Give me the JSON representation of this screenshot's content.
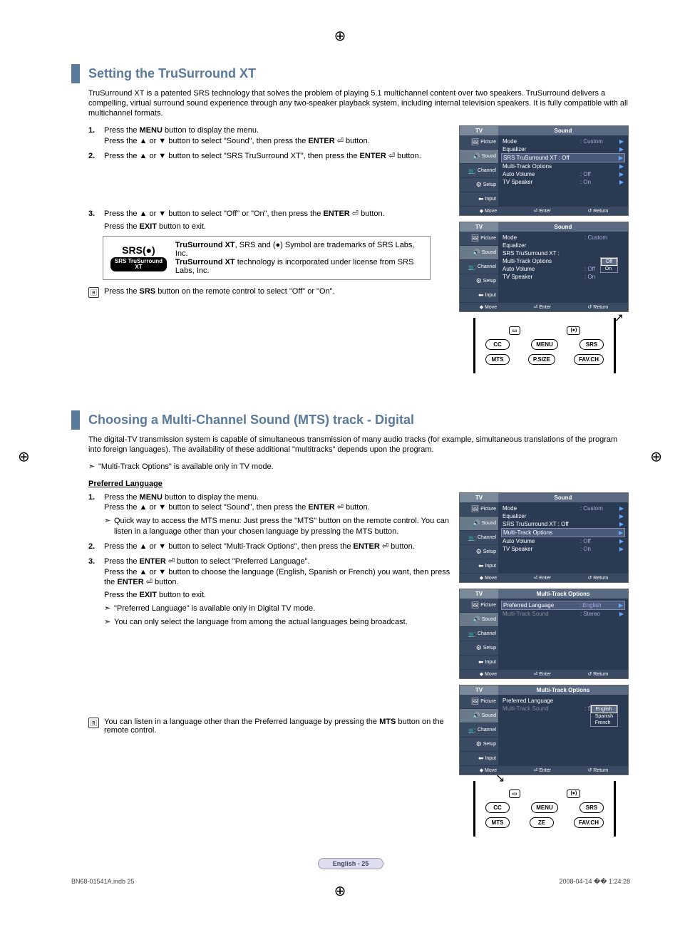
{
  "cropmark": "⊕",
  "section1": {
    "title": "Setting the TruSurround XT",
    "intro": "TruSurround XT is a patented SRS technology that solves the problem of playing 5.1 multichannel content over two speakers. TruSurround delivers a compelling, virtual surround sound experience through any two-speaker playback system, including internal television speakers. It is fully compatible with all multichannel formats.",
    "steps": {
      "s1_num": "1.",
      "s1a": "Press the ",
      "s1a_b": "MENU",
      "s1a2": " button to display the menu.",
      "s1b": "Press the ▲ or ▼ button to select \"Sound\", then press the ",
      "s1b_b": "ENTER",
      "s1b2": " ⏎ button.",
      "s2_num": "2.",
      "s2a": "Press the ▲ or ▼ button to select \"SRS TruSurround XT\", then press the ",
      "s2b_b": "ENTER",
      "s2b2": " ⏎ button.",
      "s3_num": "3.",
      "s3a": "Press the ▲ or ▼ button to select \"Off\" or \"On\", then press the ",
      "s3a_b": "ENTER",
      "s3a2": " ⏎ button.",
      "s3b": "Press the ",
      "s3b_b": "EXIT",
      "s3b2": " button to exit."
    },
    "srsbox": {
      "logo_line1": "SRS(●)",
      "logo_line2": "SRS TruSurround XT",
      "t1a": "TruSurround XT",
      "t1b": ", SRS and (●) Symbol are trademarks of SRS Labs, Inc.",
      "t2a": "TruSurround XT",
      "t2b": " technology is incorporated under license from SRS Labs, Inc."
    },
    "remote_icon": "🅁",
    "remote_text1": "Press the ",
    "remote_text_b": "SRS",
    "remote_text2": " button on the remote control to select \"Off\" or \"On\"."
  },
  "osd_common": {
    "tv": "TV",
    "side": [
      "Picture",
      "Sound",
      "Channel",
      "Setup",
      "Input"
    ],
    "side_icons": [
      "🖼",
      "🔊",
      "📺",
      "⚙",
      "⬅"
    ],
    "foot_move": "◆ Move",
    "foot_enter": "⏎ Enter",
    "foot_return": "↺ Return"
  },
  "osd1": {
    "title": "Sound",
    "rows": [
      {
        "lab": "Mode",
        "val": ": Custom",
        "arr": "▶"
      },
      {
        "lab": "Equalizer",
        "val": "",
        "arr": "▶"
      },
      {
        "lab": "SRS TruSurround XT : Off",
        "val": "",
        "arr": "▶",
        "hl": true
      },
      {
        "lab": "Multi-Track Options",
        "val": "",
        "arr": "▶"
      },
      {
        "lab": "Auto Volume",
        "val": ": Off",
        "arr": "▶"
      },
      {
        "lab": "TV Speaker",
        "val": ": On",
        "arr": "▶"
      }
    ]
  },
  "osd2": {
    "title": "Sound",
    "rows": [
      {
        "lab": "Mode",
        "val": ": Custom",
        "arr": ""
      },
      {
        "lab": "Equalizer",
        "val": "",
        "arr": ""
      },
      {
        "lab": "SRS TruSurround XT :",
        "val": "",
        "arr": "",
        "popup": [
          "Off",
          "On"
        ],
        "psel": "Off"
      },
      {
        "lab": "Multi-Track Options",
        "val": "",
        "arr": ""
      },
      {
        "lab": "Auto Volume",
        "val": ": Off",
        "arr": ""
      },
      {
        "lab": "TV Speaker",
        "val": ": On",
        "arr": ""
      }
    ]
  },
  "remote1": {
    "top": [
      "▭",
      "(●)"
    ],
    "row1": [
      "CC",
      "MENU",
      "SRS"
    ],
    "row2": [
      "MTS",
      "P.SIZE",
      "FAV.CH"
    ],
    "arrow_target": "SRS"
  },
  "section2": {
    "title": "Choosing a Multi-Channel Sound (MTS) track - Digital",
    "intro": "The digital-TV transmission system is capable of simultaneous transmission of many audio tracks (for example, simultaneous translations of the program into foreign languages). The availability of these additional \"multitracks\" depends upon the program.",
    "intro_note": "\"Multi-Track Options\" is available only in TV mode.",
    "subhead": "Preferred Language",
    "steps": {
      "s1_num": "1.",
      "s1a": "Press the ",
      "s1a_b": "MENU",
      "s1a2": " button to display the menu.",
      "s1b": "Press the ▲ or ▼ button to select \"Sound\", then press the ",
      "s1b_b": "ENTER",
      "s1b2": " ⏎ button.",
      "s1_note": "Quick way to access the MTS menu: Just press the \"MTS\" button on the remote control. You can listen in a language other than your chosen language by pressing the MTS button.",
      "s2_num": "2.",
      "s2a": "Press the ▲ or ▼ button to select \"Multi-Track Options\", then press the ",
      "s2a_b": "ENTER",
      "s2a2": " ⏎ button.",
      "s3_num": "3.",
      "s3a": "Press the ",
      "s3a_b": "ENTER",
      "s3a2": " ⏎ button to select \"Preferred Language\".",
      "s3b": "Press the ▲ or ▼ button to choose the language (English, Spanish or French) you want, then press the ",
      "s3b_b": "ENTER",
      "s3b2": " ⏎ button.",
      "s3c": "Press the ",
      "s3c_b": "EXIT",
      "s3c2": " button to exit.",
      "s3_note1": "\"Preferred Language\" is available only in Digital TV mode.",
      "s3_note2": "You can only select the language from among the actual languages being broadcast."
    },
    "remote_icon": "🅁",
    "remote_text": "You can listen in a language other than the Preferred language by pressing the ",
    "remote_text_b": "MTS",
    "remote_text2": " button on the remote control."
  },
  "osd3": {
    "title": "Sound",
    "rows": [
      {
        "lab": "Mode",
        "val": ": Custom",
        "arr": "▶"
      },
      {
        "lab": "Equalizer",
        "val": "",
        "arr": "▶"
      },
      {
        "lab": "SRS TruSurround XT : Off",
        "val": "",
        "arr": "▶"
      },
      {
        "lab": "Multi-Track Options",
        "val": "",
        "arr": "▶",
        "hl": true
      },
      {
        "lab": "Auto Volume",
        "val": ": Off",
        "arr": "▶"
      },
      {
        "lab": "TV Speaker",
        "val": ": On",
        "arr": "▶"
      }
    ]
  },
  "osd4": {
    "title": "Multi-Track Options",
    "rows": [
      {
        "lab": "Preferred Language",
        "val": ": English",
        "arr": "▶",
        "hl": true
      },
      {
        "lab": "Multi-Track Sound",
        "val": ": Stereo",
        "arr": "▶",
        "dim": true
      }
    ]
  },
  "osd5": {
    "title": "Multi-Track Options",
    "rows": [
      {
        "lab": "Preferred Language",
        "val": "",
        "arr": "",
        "popup": [
          "English",
          "Spanish",
          "French"
        ],
        "psel": "English"
      },
      {
        "lab": "Multi-Track Sound",
        "val": ": Stereo",
        "arr": "",
        "dim": true
      }
    ]
  },
  "remote2": {
    "top": [
      "▭",
      "(●)"
    ],
    "row1": [
      "CC",
      "MENU",
      "SRS"
    ],
    "row2": [
      "MTS",
      "ZE",
      "FAV.CH"
    ],
    "arrow_target": "MTS"
  },
  "pagenum": "English - 25",
  "footer_left": "BN68-01541A.indb   25",
  "footer_right": "2008-04-14   �� 1:24:28"
}
